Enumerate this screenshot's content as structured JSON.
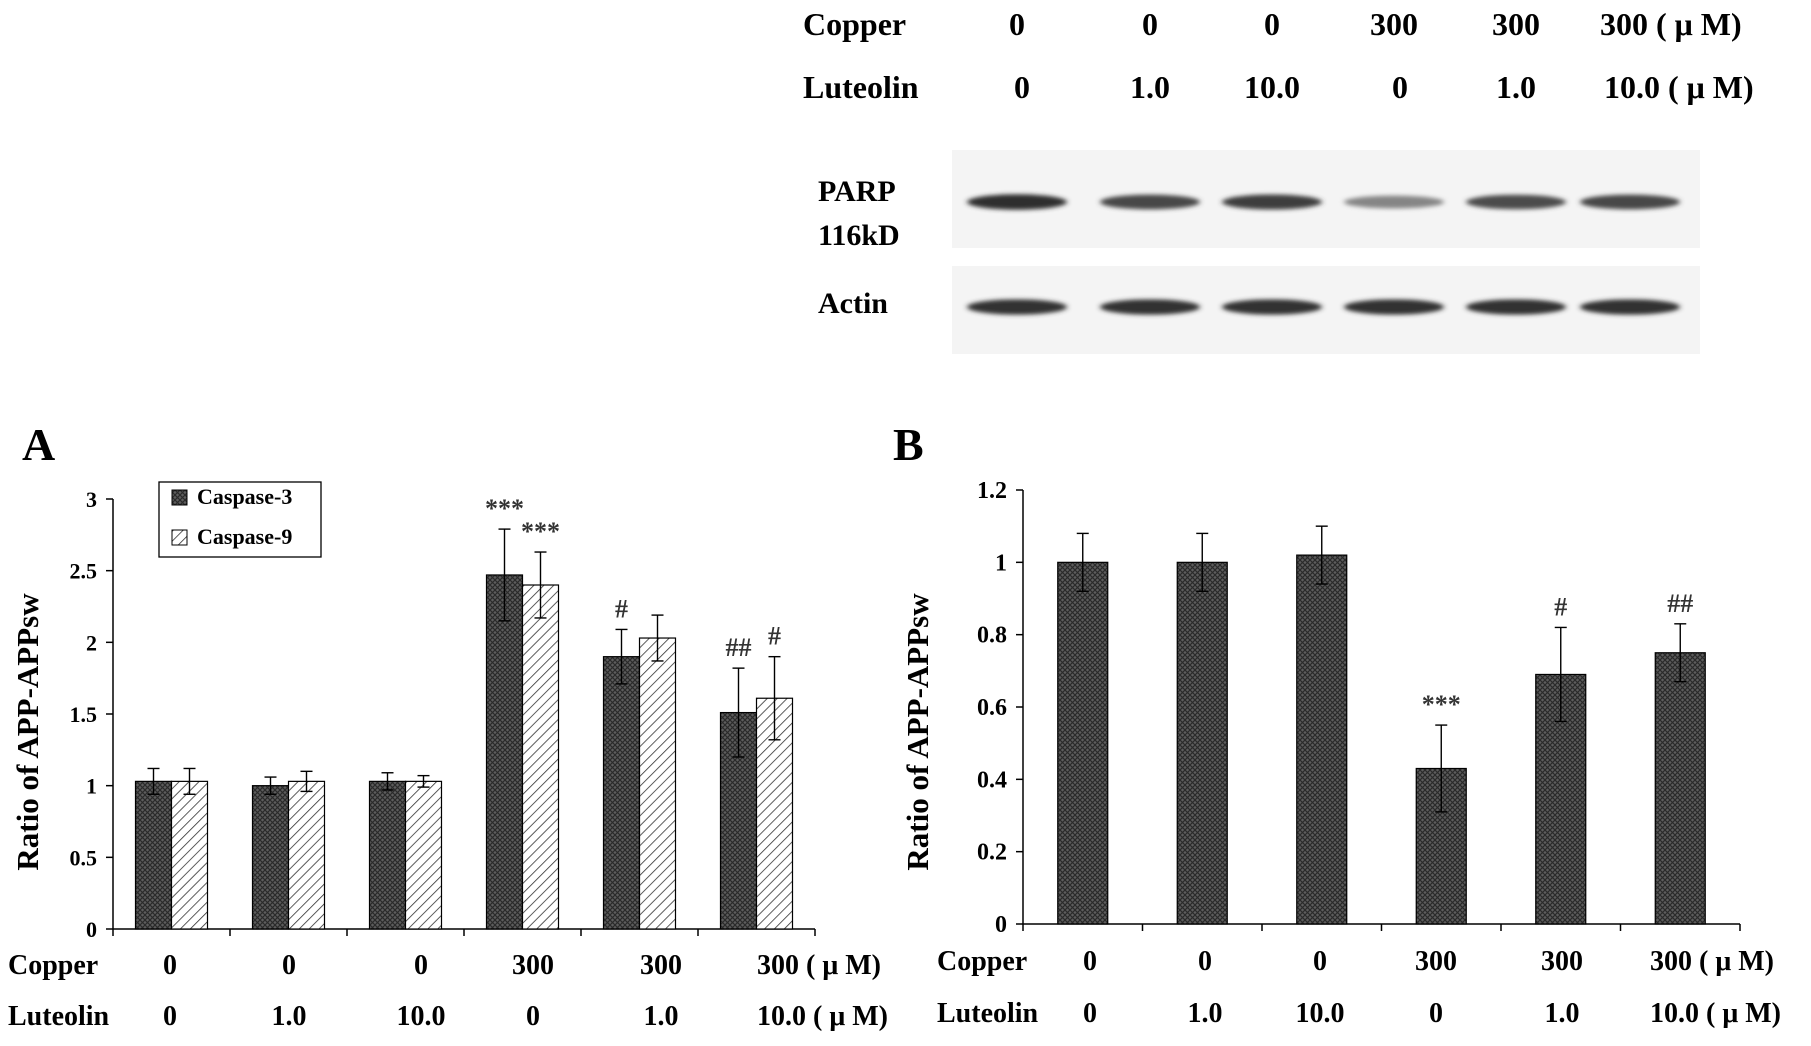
{
  "blot": {
    "rows": [
      {
        "label": "Copper",
        "values": [
          "0",
          "0",
          "0",
          "300",
          "300",
          "300 ( μ M)"
        ]
      },
      {
        "label": "Luteolin",
        "values": [
          "0",
          "1.0",
          "10.0",
          "0",
          "1.0",
          "10.0 ( μ M)"
        ]
      }
    ],
    "bands": [
      {
        "label_lines": [
          "PARP",
          "116kD"
        ],
        "intensity": [
          0.92,
          0.8,
          0.85,
          0.5,
          0.78,
          0.8
        ]
      },
      {
        "label_lines": [
          "Actin"
        ],
        "intensity": [
          0.9,
          0.9,
          0.9,
          0.9,
          0.9,
          0.9
        ]
      }
    ]
  },
  "chart_data": [
    {
      "type": "bar",
      "panel": "A",
      "ylabel": "Ratio of APP-APPsw",
      "ylim": [
        0,
        3
      ],
      "yticks": [
        "0",
        "0.5",
        "1",
        "1.5",
        "2",
        "2.5",
        "3"
      ],
      "legend_position": "top-left",
      "categories": [
        "1",
        "2",
        "3",
        "4",
        "5",
        "6"
      ],
      "x_rows": [
        {
          "label": "Copper",
          "values": [
            "0",
            "0",
            "0",
            "300",
            "300",
            "300 ( μ M)"
          ]
        },
        {
          "label": "Luteolin",
          "values": [
            "0",
            "1.0",
            "10.0",
            "0",
            "1.0",
            "10.0 ( μ M)"
          ]
        }
      ],
      "series": [
        {
          "name": "Caspase-3",
          "pattern": "crosshatch",
          "values": [
            1.03,
            1.0,
            1.03,
            2.47,
            1.9,
            1.51
          ],
          "errors": [
            0.09,
            0.06,
            0.06,
            0.32,
            0.19,
            0.31
          ],
          "annotations": [
            "",
            "",
            "",
            "***",
            "#",
            "##"
          ]
        },
        {
          "name": "Caspase-9",
          "pattern": "diagonal",
          "values": [
            1.03,
            1.03,
            1.03,
            2.4,
            2.03,
            1.61
          ],
          "errors": [
            0.09,
            0.07,
            0.04,
            0.23,
            0.16,
            0.29
          ],
          "annotations": [
            "",
            "",
            "",
            "***",
            "",
            "#"
          ]
        }
      ]
    },
    {
      "type": "bar",
      "panel": "B",
      "ylabel": "Ratio of APP-APPsw",
      "ylim": [
        0,
        1.2
      ],
      "yticks": [
        "0",
        "0.2",
        "0.4",
        "0.6",
        "0.8",
        "1",
        "1.2"
      ],
      "categories": [
        "1",
        "2",
        "3",
        "4",
        "5",
        "6"
      ],
      "x_rows": [
        {
          "label": "Copper",
          "values": [
            "0",
            "0",
            "0",
            "300",
            "300",
            "300 ( μ M)"
          ]
        },
        {
          "label": "Luteolin",
          "values": [
            "0",
            "1.0",
            "10.0",
            "0",
            "1.0",
            "10.0 ( μ M)"
          ]
        }
      ],
      "series": [
        {
          "name": "",
          "pattern": "crosshatch",
          "values": [
            1.0,
            1.0,
            1.02,
            0.43,
            0.69,
            0.75
          ],
          "errors": [
            0.08,
            0.08,
            0.08,
            0.12,
            0.13,
            0.08
          ],
          "annotations": [
            "",
            "",
            "",
            "***",
            "#",
            "##"
          ]
        }
      ]
    }
  ]
}
